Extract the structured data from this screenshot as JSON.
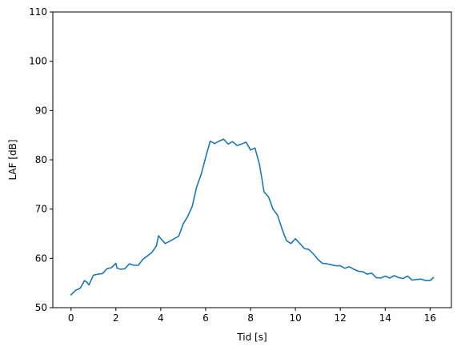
{
  "chart_data": {
    "type": "line",
    "title": "",
    "xlabel": "Tid [s]",
    "ylabel": "LAF [dB]",
    "xlim": [
      -0.81,
      16.95
    ],
    "ylim": [
      50,
      110
    ],
    "xticks": [
      0,
      2,
      4,
      6,
      8,
      10,
      12,
      14,
      16
    ],
    "yticks": [
      50,
      60,
      70,
      80,
      90,
      100,
      110
    ],
    "grid": false,
    "legend": "none",
    "series": [
      {
        "color": "#1f77b4",
        "x": [
          0.0,
          0.2,
          0.4,
          0.5,
          0.6,
          0.7,
          0.8,
          1.0,
          1.2,
          1.4,
          1.6,
          1.8,
          2.0,
          2.05,
          2.2,
          2.4,
          2.6,
          2.8,
          3.0,
          3.2,
          3.4,
          3.6,
          3.8,
          3.9,
          4.0,
          4.2,
          4.4,
          4.6,
          4.8,
          5.0,
          5.2,
          5.4,
          5.6,
          5.8,
          6.0,
          6.2,
          6.4,
          6.6,
          6.8,
          7.0,
          7.2,
          7.4,
          7.6,
          7.8,
          8.0,
          8.2,
          8.4,
          8.6,
          8.8,
          9.0,
          9.2,
          9.4,
          9.6,
          9.8,
          10.0,
          10.2,
          10.4,
          10.6,
          10.8,
          11.0,
          11.2,
          11.4,
          11.6,
          11.8,
          12.0,
          12.2,
          12.4,
          12.6,
          12.8,
          13.0,
          13.2,
          13.4,
          13.6,
          13.8,
          14.0,
          14.2,
          14.4,
          14.6,
          14.8,
          15.0,
          15.2,
          15.4,
          15.6,
          15.8,
          16.0,
          16.15
        ],
        "y": [
          52.6,
          53.5,
          53.9,
          54.6,
          55.5,
          55.2,
          54.6,
          56.6,
          56.8,
          56.9,
          57.9,
          58.1,
          59.0,
          58.0,
          57.8,
          57.9,
          58.9,
          58.6,
          58.6,
          59.8,
          60.5,
          61.2,
          62.5,
          64.6,
          64.0,
          63.0,
          63.5,
          64.0,
          64.5,
          67.0,
          68.5,
          70.5,
          74.5,
          77.0,
          80.5,
          83.8,
          83.3,
          83.8,
          84.2,
          83.2,
          83.7,
          82.9,
          83.2,
          83.6,
          82.0,
          82.4,
          79.0,
          73.5,
          72.5,
          70.0,
          68.8,
          66.0,
          63.6,
          63.0,
          64.0,
          63.0,
          62.0,
          61.8,
          60.9,
          59.8,
          59.0,
          58.9,
          58.7,
          58.5,
          58.5,
          58.0,
          58.3,
          57.8,
          57.4,
          57.3,
          56.8,
          57.0,
          56.1,
          56.0,
          56.4,
          56.0,
          56.5,
          56.1,
          55.9,
          56.4,
          55.6,
          55.7,
          55.8,
          55.5,
          55.5,
          56.1
        ]
      }
    ]
  }
}
